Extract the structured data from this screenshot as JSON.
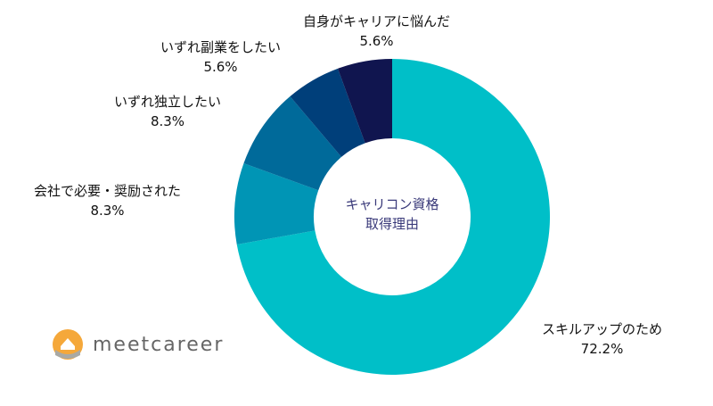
{
  "chart_data": {
    "type": "pie",
    "donut": true,
    "center_label": [
      "キャリコン資格",
      "取得理由"
    ],
    "slices": [
      {
        "label": "スキルアップのため",
        "value": 72.2,
        "display": "72.2%",
        "color": "#00bfc8"
      },
      {
        "label": "会社で必要・奨励された",
        "value": 8.3,
        "display": "8.3%",
        "color": "#0095b5"
      },
      {
        "label": "いずれ独立したい",
        "value": 8.3,
        "display": "8.3%",
        "color": "#006a9a"
      },
      {
        "label": "いずれ副業をしたい",
        "value": 5.6,
        "display": "5.6%",
        "color": "#003f7a"
      },
      {
        "label": "自身がキャリアに悩んだ",
        "value": 5.6,
        "display": "5.6%",
        "color": "#10154f"
      }
    ]
  },
  "logo": {
    "text": "meetcareer"
  }
}
